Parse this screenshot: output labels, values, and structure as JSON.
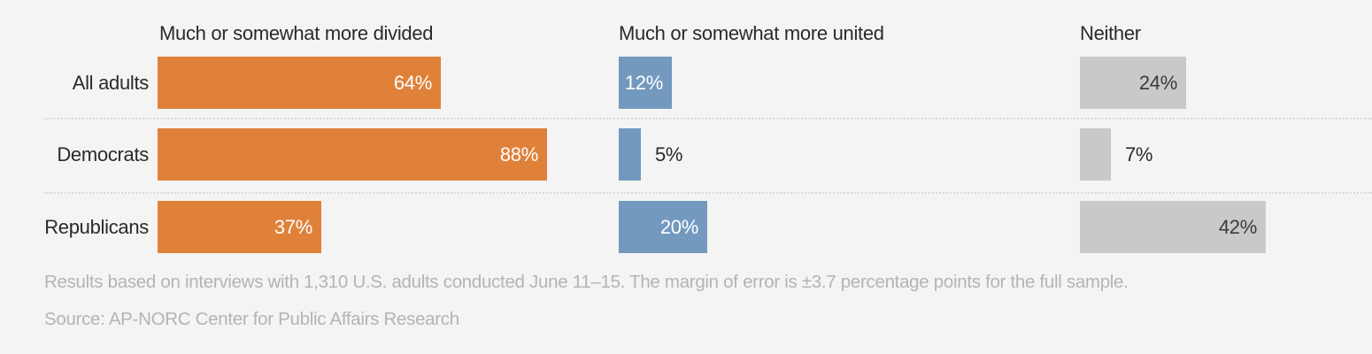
{
  "colors": {
    "background": "#f4f4f4",
    "divided_bar": "#e0813a",
    "united_bar": "#7399bf",
    "neither_bar": "#c9c9c9",
    "header_text": "#2a2a2a",
    "value_inside_light": "#ffffff",
    "value_inside_dark": "#3a3a3a",
    "value_outside": "#2a2a2a",
    "footnote_text": "#b4b4b4",
    "divider": "#d9d9d9"
  },
  "chart_data": {
    "type": "bar",
    "orientation": "horizontal",
    "categories": [
      "All adults",
      "Democrats",
      "Republicans"
    ],
    "series": [
      {
        "name": "Much or somewhat more divided",
        "color_key": "divided_bar",
        "values": [
          64,
          88,
          37
        ]
      },
      {
        "name": "Much or somewhat more united",
        "color_key": "united_bar",
        "values": [
          12,
          5,
          20
        ]
      },
      {
        "name": "Neither",
        "color_key": "neither_bar",
        "values": [
          24,
          7,
          42
        ]
      }
    ],
    "value_suffix": "%",
    "xlim": [
      0,
      100
    ],
    "grid": false,
    "legend_position": "column-headers"
  },
  "footnotes": [
    "Results based on interviews with 1,310 U.S. adults conducted June 11–15. The margin of error is ±3.7 percentage points for the full sample.",
    "Source: AP-NORC Center for Public Affairs Research"
  ]
}
